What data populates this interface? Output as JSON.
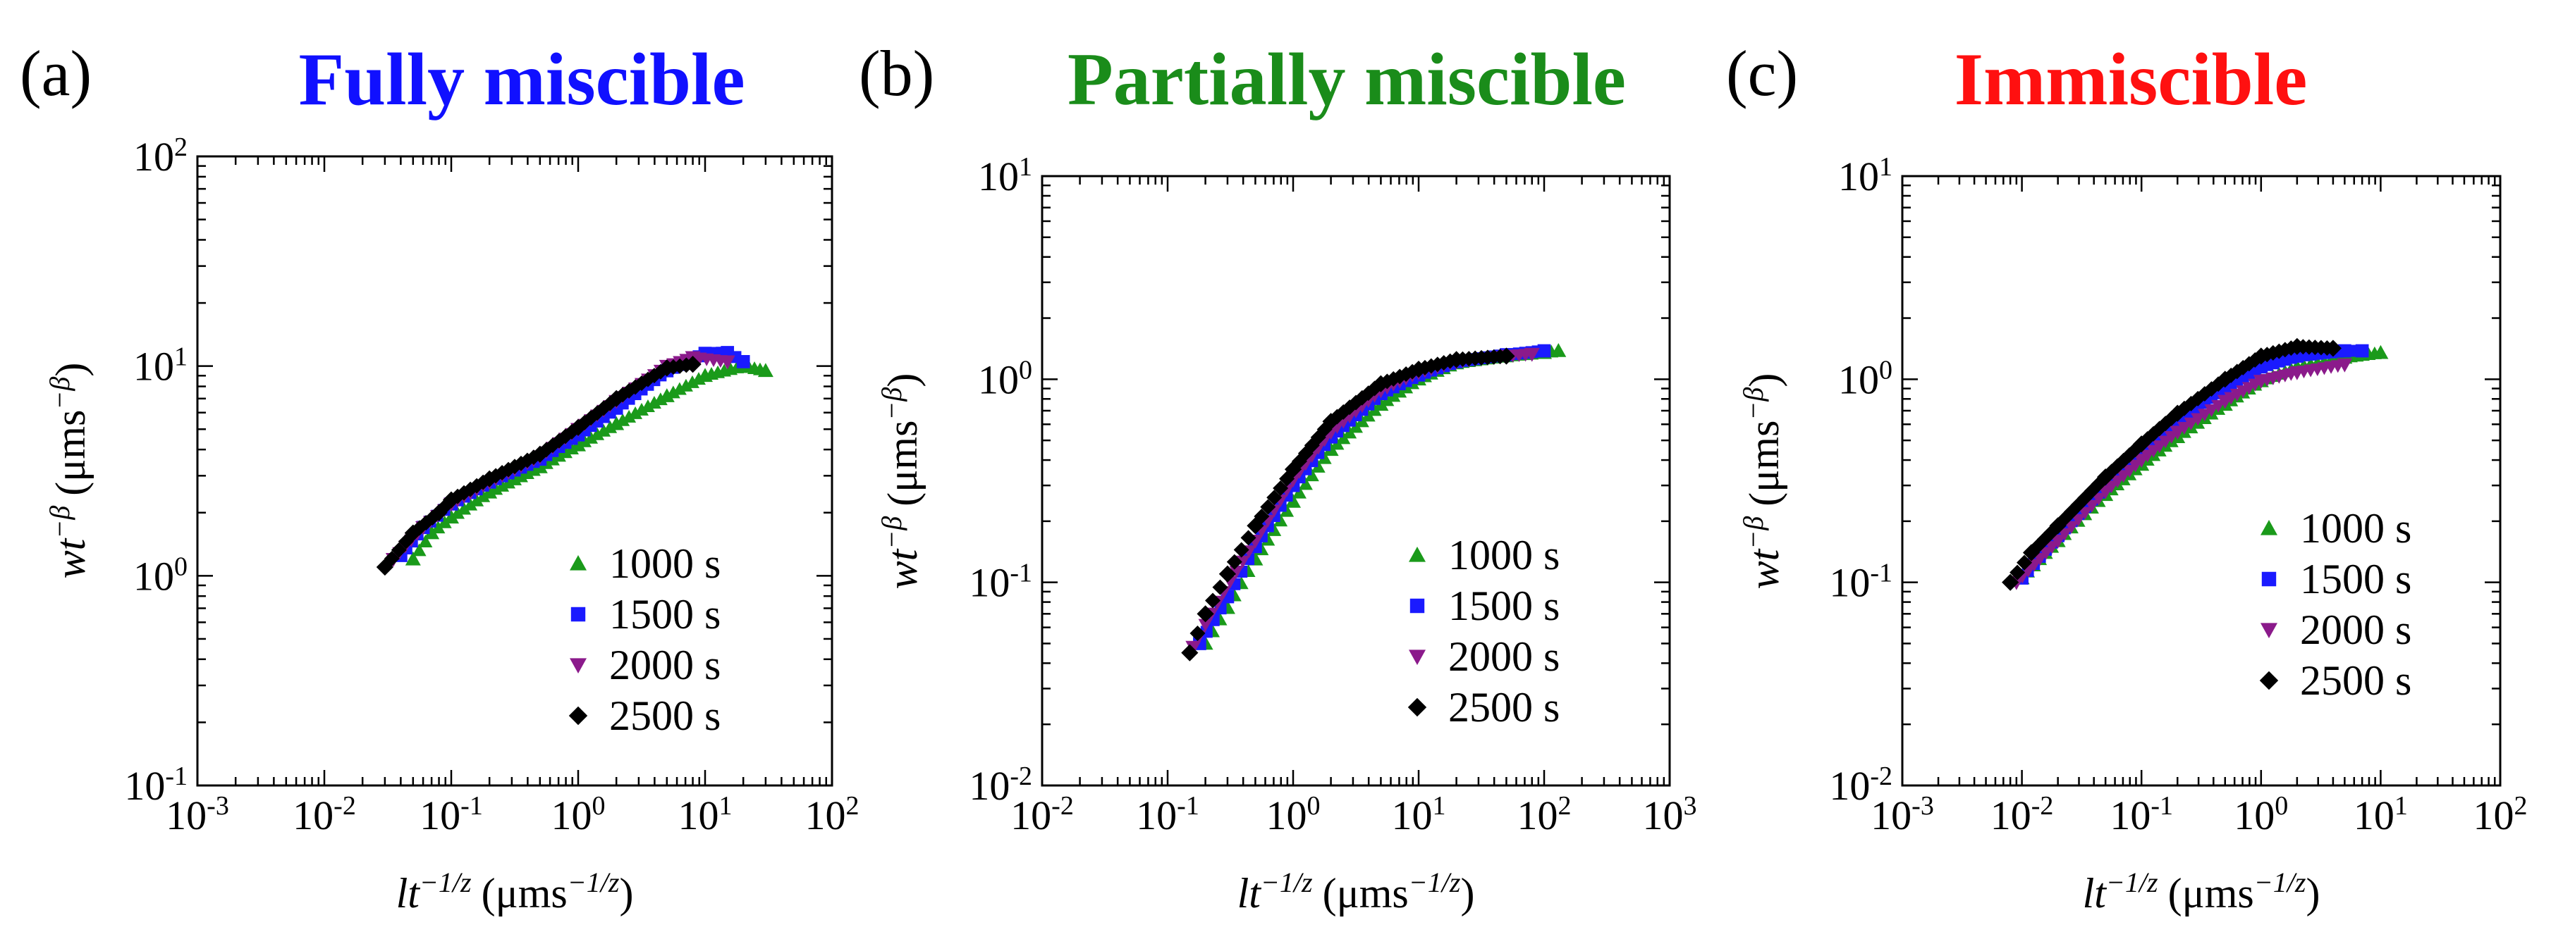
{
  "legend_labels": [
    "1000 s",
    "1500 s",
    "2000 s",
    "2500 s"
  ],
  "series_style": [
    {
      "color": "#1a9a1a",
      "marker": "triangle-up"
    },
    {
      "color": "#1a1aff",
      "marker": "square"
    },
    {
      "color": "#8b1a8b",
      "marker": "triangle-down"
    },
    {
      "color": "#000000",
      "marker": "diamond"
    }
  ],
  "ylabel": {
    "main": "wt",
    "sup": "−β",
    "unit": "(μms",
    "unit_sup": "−β",
    "unit_close": ")"
  },
  "xlabel": {
    "main": "lt",
    "sup": "−1/z",
    "unit": "(μms",
    "unit_sup": "−1/z",
    "unit_close": ")"
  },
  "panels": [
    {
      "letter": "(a)",
      "title": "Fully miscible",
      "title_color": "#1010ff"
    },
    {
      "letter": "(b)",
      "title": "Partially miscible",
      "title_color": "#1a8c1a"
    },
    {
      "letter": "(c)",
      "title": "Immiscible",
      "title_color": "#ff1010"
    }
  ],
  "chart_data": [
    {
      "type": "scatter",
      "title": "Fully miscible",
      "xlabel": "lt^{-1/z} (μms^{-1/z})",
      "ylabel": "wt^{-β} (μms^{-β})",
      "x_scale": "log",
      "y_scale": "log",
      "xlim": [
        0.001,
        100
      ],
      "ylim": [
        0.1,
        100
      ],
      "x_ticks": [
        0.001,
        0.01,
        0.1,
        1,
        10,
        100
      ],
      "y_ticks": [
        0.1,
        1,
        10,
        100
      ],
      "legend": "lower-right",
      "series": [
        {
          "name": "1000 s",
          "x": [
            0.05,
            0.07,
            0.1,
            0.2,
            0.5,
            1,
            2,
            5,
            10,
            20,
            30
          ],
          "y": [
            1.2,
            1.6,
            1.9,
            2.5,
            3.3,
            4.2,
            5.3,
            7.2,
            9.0,
            10.0,
            9.5
          ]
        },
        {
          "name": "1500 s",
          "x": [
            0.04,
            0.06,
            0.1,
            0.2,
            0.5,
            1,
            2,
            5,
            10,
            15,
            20
          ],
          "y": [
            1.25,
            1.7,
            2.2,
            2.8,
            3.6,
            4.7,
            6.3,
            9.5,
            11.5,
            11.6,
            10.5
          ]
        },
        {
          "name": "2000 s",
          "x": [
            0.035,
            0.06,
            0.1,
            0.2,
            0.5,
            1,
            2,
            5,
            8,
            15
          ],
          "y": [
            1.2,
            1.7,
            2.2,
            2.8,
            3.7,
            5.0,
            6.8,
            10.0,
            11.0,
            10.5
          ]
        },
        {
          "name": "2500 s",
          "x": [
            0.03,
            0.05,
            0.08,
            0.1,
            0.2,
            0.5,
            1,
            2,
            5,
            8
          ],
          "y": [
            1.1,
            1.6,
            2.0,
            2.3,
            2.9,
            3.8,
            5.1,
            7.0,
            9.8,
            10.2
          ]
        }
      ]
    },
    {
      "type": "scatter",
      "title": "Partially miscible",
      "xlabel": "lt^{-1/z} (μms^{-1/z})",
      "ylabel": "wt^{-β} (μms^{-β})",
      "x_scale": "log",
      "y_scale": "log",
      "xlim": [
        0.01,
        1000
      ],
      "ylim": [
        0.01,
        10
      ],
      "x_ticks": [
        0.01,
        0.1,
        1,
        10,
        100,
        1000
      ],
      "y_ticks": [
        0.01,
        0.1,
        1,
        10
      ],
      "legend": "lower-right",
      "series": [
        {
          "name": "1000 s",
          "x": [
            0.2,
            0.3,
            0.5,
            1,
            2,
            5,
            10,
            20,
            50,
            100,
            130
          ],
          "y": [
            0.05,
            0.075,
            0.13,
            0.25,
            0.45,
            0.75,
            1.0,
            1.2,
            1.3,
            1.35,
            1.38
          ]
        },
        {
          "name": "1500 s",
          "x": [
            0.18,
            0.3,
            0.5,
            1,
            2,
            5,
            10,
            20,
            50,
            100
          ],
          "y": [
            0.05,
            0.085,
            0.15,
            0.3,
            0.52,
            0.85,
            1.05,
            1.22,
            1.32,
            1.38
          ]
        },
        {
          "name": "2000 s",
          "x": [
            0.16,
            0.25,
            0.5,
            1,
            2,
            5,
            10,
            20,
            50,
            80
          ],
          "y": [
            0.048,
            0.08,
            0.16,
            0.32,
            0.55,
            0.88,
            1.08,
            1.22,
            1.3,
            1.33
          ]
        },
        {
          "name": "2500 s",
          "x": [
            0.15,
            0.2,
            0.3,
            0.5,
            1,
            2,
            5,
            10,
            20,
            50
          ],
          "y": [
            0.045,
            0.07,
            0.11,
            0.19,
            0.36,
            0.62,
            0.95,
            1.12,
            1.25,
            1.3
          ]
        }
      ]
    },
    {
      "type": "scatter",
      "title": "Immiscible",
      "xlabel": "lt^{-1/z} (μms^{-1/z})",
      "ylabel": "wt^{-β} (μms^{-β})",
      "x_scale": "log",
      "y_scale": "log",
      "xlim": [
        0.001,
        100
      ],
      "ylim": [
        0.01,
        10
      ],
      "x_ticks": [
        0.001,
        0.01,
        0.1,
        1,
        10,
        100
      ],
      "y_ticks": [
        0.01,
        0.1,
        1,
        10
      ],
      "legend": "lower-right",
      "series": [
        {
          "name": "1000 s",
          "x": [
            0.01,
            0.02,
            0.05,
            0.1,
            0.2,
            0.5,
            1,
            2,
            5,
            10
          ],
          "y": [
            0.105,
            0.16,
            0.27,
            0.38,
            0.52,
            0.75,
            0.98,
            1.15,
            1.28,
            1.35
          ]
        },
        {
          "name": "1500 s",
          "x": [
            0.01,
            0.02,
            0.05,
            0.1,
            0.2,
            0.5,
            1,
            2,
            5,
            7
          ],
          "y": [
            0.105,
            0.17,
            0.3,
            0.44,
            0.62,
            0.9,
            1.15,
            1.3,
            1.38,
            1.38
          ]
        },
        {
          "name": "2000 s",
          "x": [
            0.009,
            0.02,
            0.05,
            0.1,
            0.2,
            0.5,
            1,
            2,
            5
          ],
          "y": [
            0.1,
            0.16,
            0.28,
            0.4,
            0.55,
            0.78,
            0.98,
            1.08,
            1.18
          ]
        },
        {
          "name": "2500 s",
          "x": [
            0.008,
            0.012,
            0.02,
            0.05,
            0.1,
            0.2,
            0.5,
            1,
            2,
            4
          ],
          "y": [
            0.1,
            0.14,
            0.19,
            0.33,
            0.48,
            0.68,
            1.0,
            1.3,
            1.45,
            1.42
          ]
        }
      ]
    }
  ]
}
